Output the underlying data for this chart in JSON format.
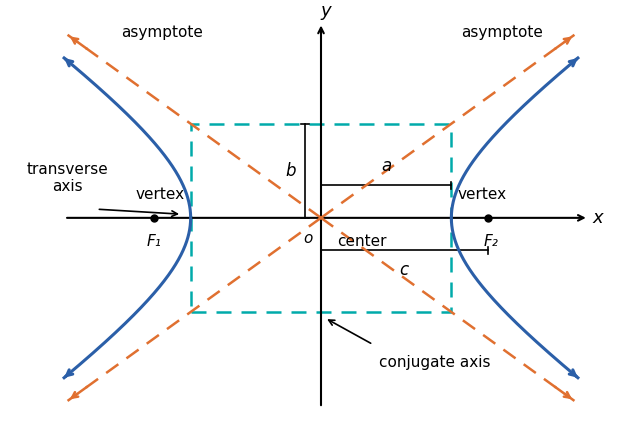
{
  "a": 1.8,
  "b": 1.3,
  "c": 2.3,
  "xlim": [
    -3.8,
    3.8
  ],
  "ylim": [
    -2.8,
    2.8
  ],
  "hyperbola_color": "#2b5fa8",
  "asymptote_color": "#e07030",
  "rect_color": "#00aaaa",
  "axis_color": "#000000",
  "text_color": "#000000",
  "background_color": "#ffffff",
  "labels": {
    "y_axis": "y",
    "x_axis": "x",
    "origin": "o",
    "center": "center",
    "F1": "F₁",
    "F2": "F₂",
    "vertex_left": "vertex",
    "vertex_right": "vertex",
    "asymptote_left": "asymptote",
    "asymptote_right": "asymptote",
    "transverse_axis": "transverse\naxis",
    "conjugate_axis": "conjugate axis",
    "a_label": "a",
    "b_label": "b",
    "c_label": "c"
  }
}
